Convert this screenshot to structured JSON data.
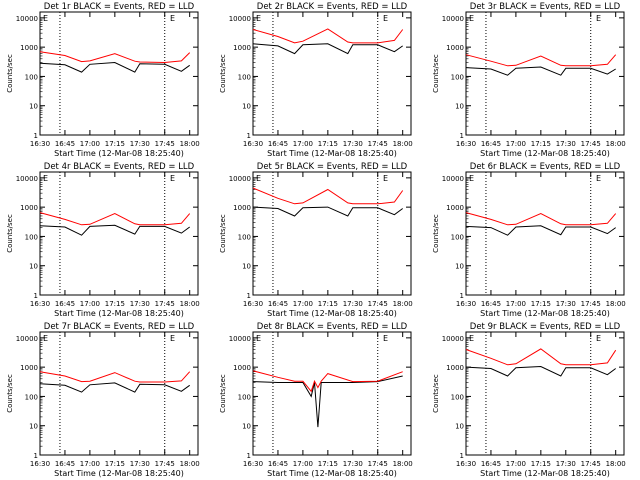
{
  "colors": {
    "background": "#ffffff",
    "axes": "#000000",
    "events": "#000000",
    "lld": "#ff0000"
  },
  "panel_titles": [
    "Det 1r BLACK = Events, RED = LLD",
    "Det 2r BLACK = Events, RED = LLD",
    "Det 3r BLACK = Events, RED = LLD",
    "Det 4r BLACK = Events, RED = LLD",
    "Det 5r BLACK = Events, RED = LLD",
    "Det 6r BLACK = Events, RED = LLD",
    "Det 7r BLACK = Events, RED = LLD",
    "Det 8r BLACK = Events, RED = LLD",
    "Det 9r BLACK = Events, RED = LLD"
  ],
  "ylabel": "Counts/sec",
  "xlabel": "Start Time (12-Mar-08 18:25:40)",
  "x_tick_labels": [
    "16:30",
    "16:45",
    "17:00",
    "17:15",
    "17:30",
    "17:45",
    "18:00"
  ],
  "y_tick_labels": [
    "1",
    "10",
    "100",
    "1000",
    "10000"
  ],
  "corner_mark": "E",
  "chart_data": [
    {
      "type": "line",
      "title": "Det 1r BLACK = Events, RED = LLD",
      "x": [
        "16:30",
        "16:45",
        "16:55",
        "17:00",
        "17:15",
        "17:27",
        "17:30",
        "17:45",
        "17:55",
        "18:00"
      ],
      "series": [
        {
          "name": "Events",
          "values": [
            280,
            250,
            140,
            260,
            300,
            140,
            270,
            260,
            150,
            240
          ]
        },
        {
          "name": "LLD",
          "values": [
            700,
            520,
            320,
            340,
            600,
            330,
            310,
            300,
            340,
            650
          ]
        }
      ]
    },
    {
      "type": "line",
      "title": "Det 2r BLACK = Events, RED = LLD",
      "x": [
        "16:30",
        "16:45",
        "16:55",
        "17:00",
        "17:15",
        "17:27",
        "17:30",
        "17:45",
        "17:55",
        "18:00"
      ],
      "series": [
        {
          "name": "Events",
          "values": [
            1300,
            1100,
            600,
            1200,
            1300,
            600,
            1200,
            1200,
            700,
            1100
          ]
        },
        {
          "name": "LLD",
          "values": [
            4000,
            2300,
            1400,
            1600,
            4200,
            1500,
            1400,
            1400,
            1700,
            4000
          ]
        }
      ]
    },
    {
      "type": "line",
      "title": "Det 3r BLACK = Events, RED = LLD",
      "x": [
        "16:30",
        "16:45",
        "16:55",
        "17:00",
        "17:15",
        "17:27",
        "17:30",
        "17:45",
        "17:55",
        "18:00"
      ],
      "series": [
        {
          "name": "Events",
          "values": [
            200,
            180,
            110,
            190,
            210,
            110,
            190,
            190,
            120,
            180
          ]
        },
        {
          "name": "LLD",
          "values": [
            550,
            330,
            230,
            240,
            500,
            240,
            230,
            230,
            260,
            550
          ]
        }
      ]
    },
    {
      "type": "line",
      "title": "Det 4r BLACK = Events, RED = LLD",
      "x": [
        "16:30",
        "16:45",
        "16:55",
        "17:00",
        "17:15",
        "17:27",
        "17:30",
        "17:45",
        "17:55",
        "18:00"
      ],
      "series": [
        {
          "name": "Events",
          "values": [
            230,
            210,
            110,
            220,
            240,
            120,
            220,
            220,
            130,
            210
          ]
        },
        {
          "name": "LLD",
          "values": [
            650,
            380,
            250,
            260,
            600,
            270,
            250,
            250,
            280,
            600
          ]
        }
      ]
    },
    {
      "type": "line",
      "title": "Det 5r BLACK = Events, RED = LLD",
      "x": [
        "16:30",
        "16:45",
        "16:55",
        "17:00",
        "17:15",
        "17:27",
        "17:30",
        "17:45",
        "17:55",
        "18:00"
      ],
      "series": [
        {
          "name": "Events",
          "values": [
            1000,
            900,
            500,
            950,
            1000,
            500,
            950,
            950,
            550,
            900
          ]
        },
        {
          "name": "LLD",
          "values": [
            4500,
            2000,
            1300,
            1400,
            4000,
            1400,
            1300,
            1300,
            1500,
            3700
          ]
        }
      ]
    },
    {
      "type": "line",
      "title": "Det 6r BLACK = Events, RED = LLD",
      "x": [
        "16:30",
        "16:45",
        "16:55",
        "17:00",
        "17:15",
        "17:27",
        "17:30",
        "17:45",
        "17:55",
        "18:00"
      ],
      "series": [
        {
          "name": "Events",
          "values": [
            220,
            200,
            110,
            210,
            230,
            115,
            210,
            210,
            125,
            200
          ]
        },
        {
          "name": "LLD",
          "values": [
            650,
            380,
            250,
            260,
            600,
            270,
            250,
            250,
            280,
            600
          ]
        }
      ]
    },
    {
      "type": "line",
      "title": "Det 7r BLACK = Events, RED = LLD",
      "x": [
        "16:30",
        "16:45",
        "16:55",
        "17:00",
        "17:15",
        "17:27",
        "17:30",
        "17:45",
        "17:55",
        "18:00"
      ],
      "series": [
        {
          "name": "Events",
          "values": [
            270,
            240,
            140,
            250,
            290,
            140,
            260,
            250,
            150,
            240
          ]
        },
        {
          "name": "LLD",
          "values": [
            700,
            500,
            320,
            330,
            650,
            330,
            310,
            310,
            340,
            700
          ]
        }
      ]
    },
    {
      "type": "line",
      "title": "Det 8r BLACK = Events, RED = LLD",
      "x": [
        "16:30",
        "16:45",
        "16:55",
        "17:00",
        "17:05",
        "17:07",
        "17:09",
        "17:11",
        "17:15",
        "17:30",
        "17:45",
        "18:00"
      ],
      "series": [
        {
          "name": "Events",
          "values": [
            320,
            300,
            300,
            300,
            100,
            300,
            9,
            300,
            300,
            300,
            320,
            500
          ]
        },
        {
          "name": "LLD",
          "values": [
            750,
            450,
            330,
            330,
            150,
            330,
            200,
            330,
            600,
            320,
            330,
            700
          ]
        }
      ]
    },
    {
      "type": "line",
      "title": "Det 9r BLACK = Events, RED = LLD",
      "x": [
        "16:30",
        "16:45",
        "16:55",
        "17:00",
        "17:15",
        "17:27",
        "17:30",
        "17:45",
        "17:55",
        "18:00"
      ],
      "series": [
        {
          "name": "Events",
          "values": [
            1000,
            900,
            500,
            950,
            1050,
            500,
            950,
            950,
            550,
            900
          ]
        },
        {
          "name": "LLD",
          "values": [
            4000,
            2000,
            1200,
            1300,
            4200,
            1300,
            1200,
            1200,
            1400,
            3800
          ]
        }
      ]
    }
  ]
}
